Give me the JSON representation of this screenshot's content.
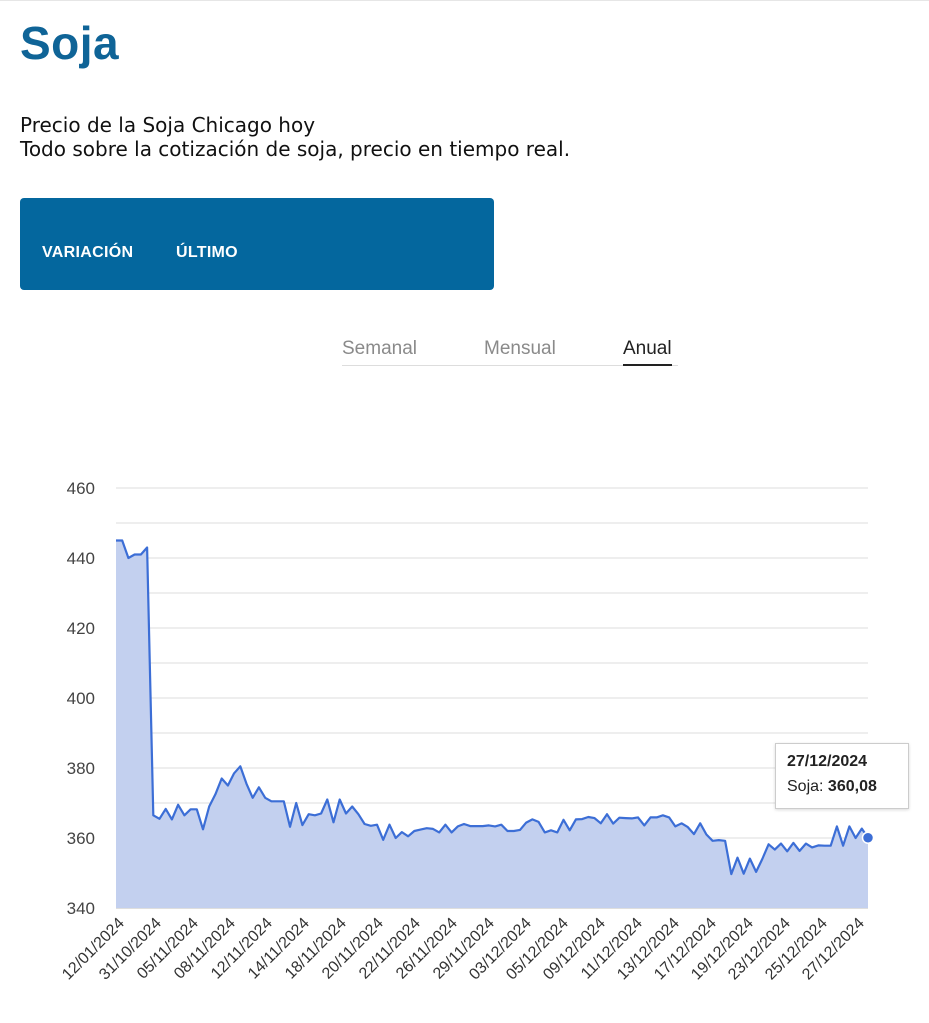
{
  "page": {
    "title": "Soja",
    "subtitle_line1": "Precio de la Soja Chicago hoy",
    "subtitle_line2": "Todo sobre la cotización de soja, precio en tiempo real."
  },
  "panel": {
    "variation_label": "VARIACIÓN",
    "last_label": "ÚLTIMO"
  },
  "tabs": [
    {
      "label": "Semanal",
      "active": false
    },
    {
      "label": "Mensual",
      "active": false
    },
    {
      "label": "Anual",
      "active": true
    }
  ],
  "tooltip": {
    "date": "27/12/2024",
    "series": "Soja",
    "value": "360,08"
  },
  "colors": {
    "brand": "#0f6497",
    "panel": "#04679e",
    "line": "#3c6ed6",
    "fill": "#c3d0ef"
  },
  "chart_data": {
    "type": "area",
    "series_name": "Soja",
    "ylim": [
      340,
      460
    ],
    "yticks": [
      340,
      360,
      380,
      400,
      420,
      440,
      460
    ],
    "grid": true,
    "x_tick_labels": [
      "12/01/2024",
      "31/10/2024",
      "05/11/2024",
      "08/11/2024",
      "12/11/2024",
      "14/11/2024",
      "18/11/2024",
      "20/11/2024",
      "22/11/2024",
      "26/11/2024",
      "29/11/2024",
      "03/12/2024",
      "05/12/2024",
      "09/12/2024",
      "11/12/2024",
      "13/12/2024",
      "17/12/2024",
      "19/12/2024",
      "23/12/2024",
      "25/12/2024",
      "27/12/2024"
    ],
    "values": [
      445,
      445,
      440,
      441,
      441,
      443,
      366.5,
      365.5,
      368.3,
      365.3,
      369.5,
      366.5,
      368.2,
      368.2,
      362.5,
      369,
      372.5,
      377,
      375,
      378.5,
      380.5,
      375.5,
      371.5,
      374.5,
      371.5,
      370.5,
      370.5,
      370.5,
      363.2,
      370,
      363.7,
      366.8,
      366.5,
      367,
      371,
      364.5,
      371,
      367,
      369,
      366.8,
      364,
      363.5,
      363.8,
      359.5,
      363.8,
      360,
      361.7,
      360.5,
      362,
      362.4,
      362.8,
      362.6,
      361.6,
      363.8,
      361.6,
      363.3,
      364,
      363.4,
      363.4,
      363.4,
      363.6,
      363.3,
      363.8,
      362,
      362,
      362.3,
      364.4,
      365.3,
      364.6,
      361.6,
      362.2,
      361.6,
      365.2,
      362.2,
      365.3,
      365.4,
      366,
      365.7,
      364.2,
      366.8,
      364.1,
      365.8,
      365.7,
      365.6,
      365.9,
      363.6,
      365.9,
      365.9,
      366.5,
      365.9,
      363.3,
      364.2,
      363.1,
      361.1,
      364.2,
      361,
      359.2,
      359.4,
      359.2,
      349.7,
      354.4,
      349.8,
      354.1,
      350.3,
      354,
      358.2,
      356.7,
      358.4,
      356.2,
      358.6,
      356.3,
      358.4,
      357.3,
      357.9,
      357.8,
      357.8,
      363.3,
      357.8,
      363.3,
      360,
      362.7,
      360.08
    ]
  }
}
